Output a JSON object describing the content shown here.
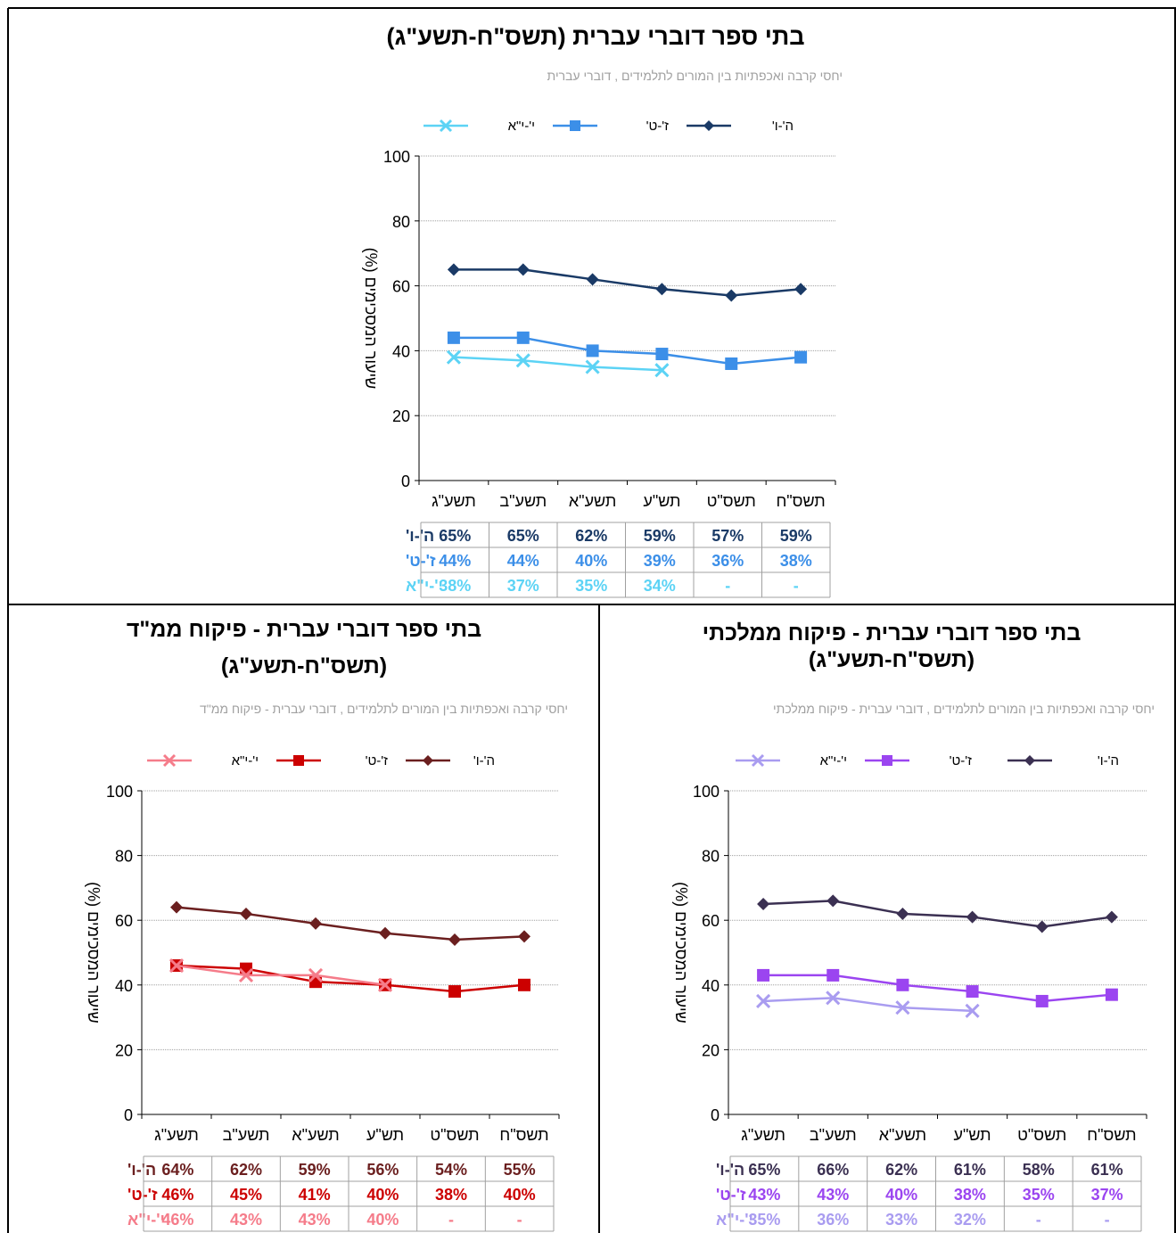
{
  "chart_data": [
    {
      "type": "line",
      "title": "בתי ספר דוברי עברית (תשס\"ח-תשע\"ג)",
      "title_lines": [
        "בתי ספר דוברי עברית (תשס\"ח-תשע\"ג)"
      ],
      "subtitle": "יחסי קרבה ואכפתיות בין המורים לתלמידים , דוברי עברית",
      "ylabel": "שיעור המסכימים (%)",
      "ylim": [
        0,
        100
      ],
      "yticks": [
        "0",
        "20",
        "40",
        "60",
        "80",
        "100"
      ],
      "grid": true,
      "legend_position": "top",
      "categories": [
        "תשס\"ח",
        "תשס\"ט",
        "תש\"ע",
        "תשע\"א",
        "תשע\"ב",
        "תשע\"ג"
      ],
      "series": [
        {
          "name": "ה'-ו'",
          "marker": "diamond",
          "color": "#1a3a66",
          "values": [
            59,
            57,
            59,
            62,
            65,
            65
          ],
          "labels": [
            "59%",
            "57%",
            "59%",
            "62%",
            "65%",
            "65%"
          ]
        },
        {
          "name": "ז'-ט'",
          "marker": "square",
          "color": "#3c8fe8",
          "values": [
            38,
            36,
            39,
            40,
            44,
            44
          ],
          "labels": [
            "38%",
            "36%",
            "39%",
            "40%",
            "44%",
            "44%"
          ]
        },
        {
          "name": "י'-י\"א",
          "marker": "x",
          "color": "#5cd3f5",
          "values": [
            null,
            null,
            34,
            35,
            37,
            38
          ],
          "labels": [
            "-",
            "-",
            "34%",
            "35%",
            "37%",
            "38%"
          ]
        }
      ]
    },
    {
      "type": "line",
      "title": "בתי ספר דוברי עברית - פיקוח ממ\"ד (תשס\"ח-תשע\"ג)",
      "title_lines": [
        "בתי ספר דוברי עברית - פיקוח ממ\"ד",
        "(תשס\"ח-תשע\"ג)"
      ],
      "subtitle": "יחסי קרבה ואכפתיות בין המורים לתלמידים , דוברי עברית - פיקוח ממ\"ד",
      "ylabel": "שיעור המסכימים (%)",
      "ylim": [
        0,
        100
      ],
      "yticks": [
        "0",
        "20",
        "40",
        "60",
        "80",
        "100"
      ],
      "grid": true,
      "legend_position": "top",
      "categories": [
        "תשס\"ח",
        "תשס\"ט",
        "תש\"ע",
        "תשע\"א",
        "תשע\"ב",
        "תשע\"ג"
      ],
      "series": [
        {
          "name": "ה'-ו'",
          "marker": "diamond",
          "color": "#6b1f1f",
          "values": [
            55,
            54,
            56,
            59,
            62,
            64
          ],
          "labels": [
            "55%",
            "54%",
            "56%",
            "59%",
            "62%",
            "64%"
          ]
        },
        {
          "name": "ז'-ט'",
          "marker": "square",
          "color": "#cc0000",
          "values": [
            40,
            38,
            40,
            41,
            45,
            46
          ],
          "labels": [
            "40%",
            "38%",
            "40%",
            "41%",
            "45%",
            "46%"
          ]
        },
        {
          "name": "י'-י\"א",
          "marker": "x",
          "color": "#f57c8a",
          "values": [
            null,
            null,
            40,
            43,
            43,
            46
          ],
          "labels": [
            "-",
            "-",
            "40%",
            "43%",
            "43%",
            "46%"
          ]
        }
      ]
    },
    {
      "type": "line",
      "title": "בתי ספר דוברי עברית - פיקוח ממלכתי (תשס\"ח-תשע\"ג)",
      "title_lines": [
        "בתי ספר דוברי עברית - פיקוח ממלכתי",
        "(תשס\"ח-תשע\"ג)"
      ],
      "subtitle": "יחסי קרבה ואכפתיות בין המורים לתלמידים , דוברי עברית - פיקוח ממלכתי",
      "ylabel": "שיעור המסכימים (%)",
      "ylim": [
        0,
        100
      ],
      "yticks": [
        "0",
        "20",
        "40",
        "60",
        "80",
        "100"
      ],
      "grid": true,
      "legend_position": "top",
      "categories": [
        "תשס\"ח",
        "תשס\"ט",
        "תש\"ע",
        "תשע\"א",
        "תשע\"ב",
        "תשע\"ג"
      ],
      "series": [
        {
          "name": "ה'-ו'",
          "marker": "diamond",
          "color": "#3b3052",
          "values": [
            61,
            58,
            61,
            62,
            66,
            65
          ],
          "labels": [
            "61%",
            "58%",
            "61%",
            "62%",
            "66%",
            "65%"
          ]
        },
        {
          "name": "ז'-ט'",
          "marker": "square",
          "color": "#9b45f0",
          "values": [
            37,
            35,
            38,
            40,
            43,
            43
          ],
          "labels": [
            "37%",
            "35%",
            "38%",
            "40%",
            "43%",
            "43%"
          ]
        },
        {
          "name": "י'-י\"א",
          "marker": "x",
          "color": "#a99cf0",
          "values": [
            null,
            null,
            32,
            33,
            36,
            35
          ],
          "labels": [
            "-",
            "-",
            "32%",
            "33%",
            "36%",
            "35%"
          ]
        }
      ]
    }
  ]
}
